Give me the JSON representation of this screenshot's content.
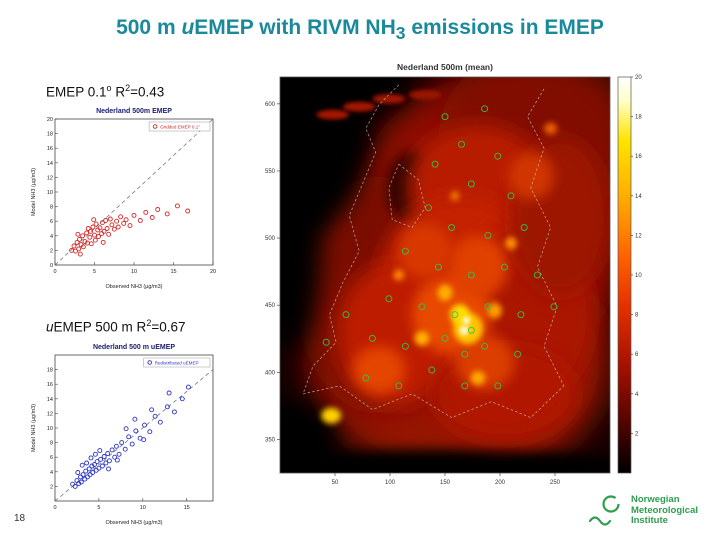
{
  "slide": {
    "page_number": "18",
    "accent_color": "#1a8a9b",
    "logo_color": "#2f9e4f"
  },
  "title": {
    "part1": "500 m ",
    "italic_u": "u",
    "part2": "EMEP with RIVM NH",
    "subscript": "3",
    "part3": " emissions in EMEP"
  },
  "annotations": {
    "emep": {
      "p1": "EMEP 0.1",
      "sup1": "o",
      "p2": " R",
      "sup2": "2",
      "p3": "=0.43"
    },
    "uemep": {
      "u": "u",
      "p1": "EMEP 500 m R",
      "sup": "2",
      "p2": "=0.67"
    }
  },
  "logo": {
    "line1": "Norwegian",
    "line2": "Meteorological",
    "line3": "Institute"
  },
  "chart_data": [
    {
      "id": "scatter-red",
      "type": "scatter",
      "title": "Nederland 500m EMEP",
      "legend_label": "Gridded EMEP 0.1°",
      "marker_color": "#d42a2a",
      "xlabel": "Observed NH3 (µg/m3)",
      "ylabel": "Model NH3 (µg/m3)",
      "xlim": [
        0,
        20
      ],
      "ylim": [
        0,
        20
      ],
      "xticks": [
        0,
        5,
        10,
        15,
        20
      ],
      "yticks": [
        0,
        2,
        4,
        6,
        8,
        10,
        12,
        14,
        16,
        18,
        20
      ],
      "identity_line": true,
      "r_squared": 0.43,
      "points": [
        [
          2.1,
          2.0
        ],
        [
          2.4,
          2.6
        ],
        [
          2.6,
          1.9
        ],
        [
          2.8,
          3.1
        ],
        [
          3.0,
          2.2
        ],
        [
          3.1,
          3.5
        ],
        [
          3.3,
          2.8
        ],
        [
          3.5,
          4.0
        ],
        [
          3.6,
          2.5
        ],
        [
          3.8,
          3.2
        ],
        [
          4.0,
          4.4
        ],
        [
          4.1,
          3.0
        ],
        [
          4.2,
          5.0
        ],
        [
          4.4,
          3.8
        ],
        [
          4.5,
          4.6
        ],
        [
          4.6,
          2.9
        ],
        [
          4.8,
          5.2
        ],
        [
          5.0,
          4.1
        ],
        [
          5.1,
          3.4
        ],
        [
          5.2,
          5.6
        ],
        [
          5.4,
          4.8
        ],
        [
          5.5,
          3.9
        ],
        [
          5.7,
          5.1
        ],
        [
          5.9,
          4.3
        ],
        [
          6.0,
          5.8
        ],
        [
          6.2,
          4.6
        ],
        [
          6.4,
          6.1
        ],
        [
          6.6,
          5.0
        ],
        [
          6.8,
          4.2
        ],
        [
          7.0,
          6.3
        ],
        [
          7.2,
          5.5
        ],
        [
          7.5,
          4.9
        ],
        [
          7.8,
          6.0
        ],
        [
          8.0,
          5.2
        ],
        [
          8.3,
          6.6
        ],
        [
          8.7,
          5.7
        ],
        [
          9.0,
          6.2
        ],
        [
          9.5,
          5.4
        ],
        [
          10.0,
          6.8
        ],
        [
          10.8,
          6.1
        ],
        [
          11.5,
          7.2
        ],
        [
          12.3,
          6.5
        ],
        [
          13.0,
          7.6
        ],
        [
          14.2,
          7.0
        ],
        [
          15.5,
          8.1
        ],
        [
          16.8,
          7.4
        ],
        [
          3.2,
          1.5
        ],
        [
          2.9,
          4.2
        ],
        [
          6.1,
          3.1
        ],
        [
          4.9,
          6.2
        ]
      ]
    },
    {
      "id": "scatter-blue",
      "type": "scatter",
      "title": "Nederland 500 m uEMEP",
      "legend_label": "Redistributed uEMEP",
      "marker_color": "#2b35c8",
      "xlabel": "Observed NH3 (µg/m3)",
      "ylabel": "Model NH3 (µg/m3)",
      "xlim": [
        0,
        18
      ],
      "ylim": [
        0,
        20
      ],
      "xticks": [
        0,
        5,
        10,
        15
      ],
      "yticks": [
        2,
        4,
        6,
        8,
        10,
        12,
        14,
        16,
        18
      ],
      "identity_line": true,
      "r_squared": 0.67,
      "points": [
        [
          2.0,
          2.3
        ],
        [
          2.3,
          2.0
        ],
        [
          2.5,
          2.8
        ],
        [
          2.7,
          2.4
        ],
        [
          2.9,
          3.3
        ],
        [
          3.0,
          2.6
        ],
        [
          3.2,
          3.6
        ],
        [
          3.4,
          3.0
        ],
        [
          3.5,
          4.1
        ],
        [
          3.7,
          3.3
        ],
        [
          3.9,
          4.4
        ],
        [
          4.0,
          3.6
        ],
        [
          4.2,
          4.8
        ],
        [
          4.3,
          3.9
        ],
        [
          4.5,
          5.0
        ],
        [
          4.7,
          4.2
        ],
        [
          4.8,
          5.4
        ],
        [
          5.0,
          4.5
        ],
        [
          5.2,
          5.7
        ],
        [
          5.4,
          4.8
        ],
        [
          5.6,
          6.1
        ],
        [
          5.8,
          5.2
        ],
        [
          6.0,
          6.5
        ],
        [
          6.2,
          5.5
        ],
        [
          6.5,
          7.0
        ],
        [
          6.8,
          6.0
        ],
        [
          7.0,
          7.5
        ],
        [
          7.3,
          6.4
        ],
        [
          7.6,
          8.0
        ],
        [
          8.0,
          7.1
        ],
        [
          8.4,
          8.8
        ],
        [
          8.8,
          7.8
        ],
        [
          9.2,
          9.6
        ],
        [
          9.7,
          8.6
        ],
        [
          10.2,
          10.4
        ],
        [
          10.8,
          9.5
        ],
        [
          11.4,
          11.6
        ],
        [
          12.0,
          10.8
        ],
        [
          12.8,
          12.9
        ],
        [
          13.6,
          12.2
        ],
        [
          14.5,
          14.0
        ],
        [
          15.2,
          15.6
        ],
        [
          3.1,
          4.9
        ],
        [
          4.1,
          5.9
        ],
        [
          5.1,
          6.9
        ],
        [
          6.1,
          4.4
        ],
        [
          7.1,
          5.6
        ],
        [
          8.1,
          9.9
        ],
        [
          9.1,
          11.2
        ],
        [
          10.1,
          8.4
        ],
        [
          2.6,
          3.9
        ],
        [
          3.6,
          5.2
        ],
        [
          4.6,
          6.4
        ],
        [
          13.0,
          14.8
        ],
        [
          11.0,
          12.5
        ]
      ]
    },
    {
      "id": "nl-heatmap",
      "type": "heatmap",
      "title": "Nederland 500m (mean)",
      "xlim": [
        0,
        300
      ],
      "ylim": [
        325,
        620
      ],
      "xticks": [
        50,
        100,
        150,
        200,
        250
      ],
      "yticks": [
        600,
        550,
        500,
        450,
        400,
        350
      ],
      "colorbar": {
        "min": 0,
        "max": 20,
        "ticks": [
          20,
          18,
          16,
          14,
          12,
          10,
          8,
          6,
          4,
          2
        ],
        "stops": [
          [
            "0",
            "#ffffff"
          ],
          [
            "0.06",
            "#ffffc8"
          ],
          [
            "0.16",
            "#ffe400"
          ],
          [
            "0.30",
            "#ffae00"
          ],
          [
            "0.45",
            "#ff6400"
          ],
          [
            "0.58",
            "#e43000"
          ],
          [
            "0.72",
            "#aa1200"
          ],
          [
            "0.85",
            "#600600"
          ],
          [
            "0.95",
            "#1e0100"
          ],
          [
            "1",
            "#000000"
          ]
        ]
      },
      "station_color": "#2ec84a",
      "blobs": [
        [
          0.62,
          0.4,
          0.42,
          0.4,
          "#8e1000",
          16
        ],
        [
          0.55,
          0.72,
          0.45,
          0.3,
          "#961200",
          16
        ],
        [
          0.78,
          0.15,
          0.3,
          0.22,
          "#801000",
          16
        ],
        [
          0.3,
          0.55,
          0.25,
          0.3,
          "#7a0e00",
          16
        ],
        [
          0.05,
          0.12,
          0.22,
          0.28,
          "#000000",
          12
        ],
        [
          0.02,
          0.45,
          0.1,
          0.25,
          "#000000",
          12
        ],
        [
          0.1,
          0.02,
          0.3,
          0.08,
          "#000000",
          12
        ],
        [
          0.4,
          0.28,
          0.07,
          0.09,
          "#180000",
          6
        ],
        [
          0.5,
          0.985,
          0.55,
          0.045,
          "#000000",
          6
        ],
        [
          0.02,
          0.92,
          0.15,
          0.1,
          "#000000",
          10
        ],
        [
          0.16,
          0.095,
          0.05,
          0.012,
          "#a81400",
          2
        ],
        [
          0.24,
          0.075,
          0.05,
          0.012,
          "#a81400",
          2
        ],
        [
          0.33,
          0.055,
          0.05,
          0.012,
          "#a01200",
          2
        ],
        [
          0.44,
          0.045,
          0.05,
          0.012,
          "#981200",
          2
        ],
        [
          0.6,
          0.28,
          0.22,
          0.16,
          "#b81a00",
          10
        ],
        [
          0.55,
          0.52,
          0.25,
          0.22,
          "#c42000",
          10
        ],
        [
          0.35,
          0.65,
          0.18,
          0.18,
          "#be1e00",
          10
        ],
        [
          0.75,
          0.6,
          0.2,
          0.22,
          "#aa1600",
          10
        ],
        [
          0.68,
          0.8,
          0.22,
          0.12,
          "#b01800",
          10
        ],
        [
          0.85,
          0.35,
          0.15,
          0.2,
          "#9c1400",
          10
        ],
        [
          0.52,
          0.6,
          0.12,
          0.1,
          "#e84800",
          6
        ],
        [
          0.6,
          0.48,
          0.09,
          0.08,
          "#e04000",
          6
        ],
        [
          0.44,
          0.44,
          0.08,
          0.07,
          "#d83800",
          6
        ],
        [
          0.3,
          0.74,
          0.08,
          0.06,
          "#e44400",
          6
        ],
        [
          0.62,
          0.72,
          0.09,
          0.07,
          "#dc3c00",
          6
        ],
        [
          0.76,
          0.25,
          0.07,
          0.06,
          "#d03400",
          6
        ],
        [
          0.57,
          0.635,
          0.045,
          0.04,
          "#ffc400",
          3
        ],
        [
          0.545,
          0.6,
          0.03,
          0.026,
          "#ffdc00",
          3
        ],
        [
          0.5,
          0.545,
          0.022,
          0.02,
          "#ffb000",
          3
        ],
        [
          0.65,
          0.59,
          0.022,
          0.02,
          "#ff9c00",
          3
        ],
        [
          0.43,
          0.66,
          0.022,
          0.018,
          "#ffb400",
          3
        ],
        [
          0.6,
          0.76,
          0.022,
          0.018,
          "#ffa800",
          3
        ],
        [
          0.155,
          0.855,
          0.03,
          0.02,
          "#ffd000",
          3
        ],
        [
          0.7,
          0.42,
          0.018,
          0.016,
          "#ff9000",
          3
        ],
        [
          0.36,
          0.5,
          0.016,
          0.014,
          "#ff8800",
          3
        ],
        [
          0.53,
          0.3,
          0.014,
          0.012,
          "#f07800",
          3
        ],
        [
          0.82,
          0.13,
          0.02,
          0.015,
          "#e86000",
          3
        ],
        [
          0.558,
          0.64,
          0.014,
          0.012,
          "#fffbd0",
          2
        ],
        [
          0.565,
          0.615,
          0.01,
          0.009,
          "#ffffff",
          2
        ]
      ],
      "borders": [
        [
          [
            0.36,
            0.02
          ],
          [
            0.3,
            0.07
          ],
          [
            0.26,
            0.13
          ],
          [
            0.29,
            0.19
          ],
          [
            0.25,
            0.27
          ],
          [
            0.21,
            0.35
          ],
          [
            0.24,
            0.44
          ],
          [
            0.19,
            0.52
          ],
          [
            0.15,
            0.6
          ],
          [
            0.17,
            0.67
          ],
          [
            0.1,
            0.73
          ],
          [
            0.07,
            0.8
          ]
        ],
        [
          [
            0.8,
            0.03
          ],
          [
            0.75,
            0.1
          ],
          [
            0.8,
            0.18
          ],
          [
            0.76,
            0.28
          ],
          [
            0.82,
            0.38
          ],
          [
            0.78,
            0.48
          ],
          [
            0.84,
            0.58
          ],
          [
            0.8,
            0.68
          ],
          [
            0.86,
            0.78
          ]
        ],
        [
          [
            0.07,
            0.8
          ],
          [
            0.18,
            0.78
          ],
          [
            0.28,
            0.84
          ],
          [
            0.4,
            0.8
          ],
          [
            0.52,
            0.86
          ],
          [
            0.64,
            0.82
          ],
          [
            0.76,
            0.86
          ],
          [
            0.86,
            0.78
          ]
        ],
        [
          [
            0.36,
            0.22
          ],
          [
            0.42,
            0.26
          ],
          [
            0.44,
            0.33
          ],
          [
            0.4,
            0.38
          ],
          [
            0.34,
            0.36
          ],
          [
            0.33,
            0.28
          ],
          [
            0.36,
            0.22
          ]
        ]
      ],
      "stations": [
        [
          0.5,
          0.1
        ],
        [
          0.62,
          0.08
        ],
        [
          0.55,
          0.17
        ],
        [
          0.47,
          0.22
        ],
        [
          0.66,
          0.2
        ],
        [
          0.58,
          0.27
        ],
        [
          0.7,
          0.3
        ],
        [
          0.45,
          0.33
        ],
        [
          0.52,
          0.38
        ],
        [
          0.63,
          0.4
        ],
        [
          0.74,
          0.38
        ],
        [
          0.38,
          0.44
        ],
        [
          0.48,
          0.48
        ],
        [
          0.58,
          0.5
        ],
        [
          0.68,
          0.48
        ],
        [
          0.78,
          0.5
        ],
        [
          0.33,
          0.56
        ],
        [
          0.43,
          0.58
        ],
        [
          0.53,
          0.6
        ],
        [
          0.63,
          0.58
        ],
        [
          0.73,
          0.6
        ],
        [
          0.83,
          0.58
        ],
        [
          0.28,
          0.66
        ],
        [
          0.38,
          0.68
        ],
        [
          0.5,
          0.66
        ],
        [
          0.56,
          0.7
        ],
        [
          0.62,
          0.68
        ],
        [
          0.72,
          0.7
        ],
        [
          0.46,
          0.74
        ],
        [
          0.56,
          0.78
        ],
        [
          0.66,
          0.78
        ],
        [
          0.36,
          0.78
        ],
        [
          0.26,
          0.76
        ],
        [
          0.58,
          0.64
        ],
        [
          0.2,
          0.6
        ],
        [
          0.14,
          0.67
        ]
      ]
    }
  ]
}
